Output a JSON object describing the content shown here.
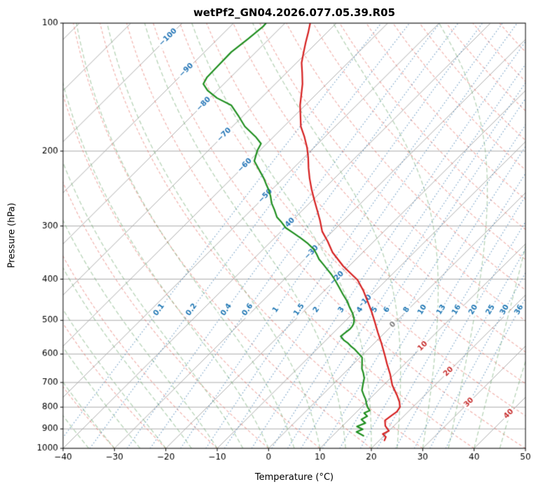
{
  "figure": {
    "title": "wetPf2_GN04.2026.077.05.39.R05",
    "xlabel": "Temperature (°C)",
    "ylabel": "Pressure (hPa)"
  },
  "chart_data": {
    "type": "line",
    "variant": "skew-t-log-p-sounding",
    "title": "wetPf2_GN04.2026.077.05.39.R05",
    "xlabel": "Temperature (°C)",
    "ylabel": "Pressure (hPa)",
    "xlim": [
      -40,
      50
    ],
    "x_ticks": [
      -40,
      -30,
      -20,
      -10,
      0,
      10,
      20,
      30,
      40,
      50
    ],
    "pressure_range": [
      100,
      1000
    ],
    "pressure_ticks": [
      100,
      200,
      300,
      400,
      500,
      600,
      700,
      800,
      900,
      1000
    ],
    "skew_c_per_decade": 83.2,
    "grid": true,
    "colors": {
      "grid": "#ababab",
      "dry_adiabat": "rgba(229,106,94,0.55)",
      "moist_adiabat": "rgba(95,160,95,0.45)",
      "mixing_line": "rgba(70,130,180,0.75)",
      "mixing_label": "#1f77b4",
      "isotherm_label_cold": "#2878b8",
      "isotherm_label_zero": "#7f7f7f",
      "isotherm_label_warm": "#c83232",
      "temperature_line": "#d62020",
      "dewpoint_line": "#1f8f1f",
      "spine": "#000000"
    },
    "isotherms": {
      "min": -120,
      "max": 50,
      "step": 10
    },
    "isotherm_labels": [
      {
        "t": -100,
        "p": 108,
        "color": "#2878b8"
      },
      {
        "t": -90,
        "p": 129,
        "color": "#2878b8"
      },
      {
        "t": -80,
        "p": 155,
        "color": "#2878b8"
      },
      {
        "t": -70,
        "p": 183,
        "color": "#2878b8"
      },
      {
        "t": -60,
        "p": 216,
        "color": "#2878b8"
      },
      {
        "t": -50,
        "p": 255,
        "color": "#2878b8"
      },
      {
        "t": -40,
        "p": 298,
        "color": "#2878b8"
      },
      {
        "t": -30,
        "p": 346,
        "color": "#2878b8"
      },
      {
        "t": -20,
        "p": 398,
        "color": "#2878b8"
      },
      {
        "t": -10,
        "p": 452,
        "color": "#2878b8"
      },
      {
        "t": 0,
        "p": 512,
        "color": "#7f7f7f"
      },
      {
        "t": 10,
        "p": 575,
        "color": "#c83232"
      },
      {
        "t": 20,
        "p": 660,
        "color": "#c83232"
      },
      {
        "t": 30,
        "p": 780,
        "color": "#c83232"
      },
      {
        "t": 40,
        "p": 830,
        "color": "#c83232"
      }
    ],
    "dry_adiabats": {
      "theta_min": -40,
      "theta_max": 190,
      "step": 10
    },
    "moist_adiabats": {
      "t_min": -40,
      "t_max": 45,
      "step": 5
    },
    "mixing_ratio_lines": {
      "values_g_kg": [
        0.1,
        0.2,
        0.4,
        0.6,
        1,
        1.5,
        2,
        3,
        4,
        5,
        6,
        8,
        10,
        13,
        16,
        20,
        25,
        30,
        36
      ],
      "label_pressure_hpa": 472
    },
    "series": [
      {
        "name": "temperature",
        "color": "#d62020",
        "points_p_t": [
          [
            958,
            21.0
          ],
          [
            940,
            20.6
          ],
          [
            925,
            19.4
          ],
          [
            910,
            20.0
          ],
          [
            885,
            18.3
          ],
          [
            860,
            17.2
          ],
          [
            838,
            17.5
          ],
          [
            820,
            17.8
          ],
          [
            800,
            17.5
          ],
          [
            778,
            16.4
          ],
          [
            750,
            14.6
          ],
          [
            710,
            11.7
          ],
          [
            670,
            9.2
          ],
          [
            634,
            6.6
          ],
          [
            600,
            4.1
          ],
          [
            566,
            1.4
          ],
          [
            534,
            -1.4
          ],
          [
            505,
            -4.0
          ],
          [
            477,
            -6.7
          ],
          [
            451,
            -9.5
          ],
          [
            425,
            -12.5
          ],
          [
            402,
            -15.6
          ],
          [
            373,
            -21.1
          ],
          [
            346,
            -25.9
          ],
          [
            326,
            -29.0
          ],
          [
            309,
            -32.0
          ],
          [
            291,
            -34.6
          ],
          [
            275,
            -37.2
          ],
          [
            260,
            -39.8
          ],
          [
            246,
            -42.3
          ],
          [
            232,
            -44.8
          ],
          [
            219,
            -47.1
          ],
          [
            207,
            -49.2
          ],
          [
            196,
            -51.4
          ],
          [
            185,
            -54.0
          ],
          [
            175,
            -56.7
          ],
          [
            165,
            -58.9
          ],
          [
            156,
            -61.0
          ],
          [
            147,
            -62.9
          ],
          [
            139,
            -64.7
          ],
          [
            131,
            -66.9
          ],
          [
            124,
            -69.0
          ],
          [
            117,
            -70.7
          ],
          [
            111,
            -72.2
          ],
          [
            105,
            -73.7
          ],
          [
            100,
            -75.1
          ]
        ]
      },
      {
        "name": "dewpoint",
        "color": "#1f8f1f",
        "points_p_t": [
          [
            934,
            16.0
          ],
          [
            915,
            13.9
          ],
          [
            902,
            14.6
          ],
          [
            888,
            12.9
          ],
          [
            872,
            13.9
          ],
          [
            855,
            12.4
          ],
          [
            840,
            12.9
          ],
          [
            826,
            11.7
          ],
          [
            815,
            12.3
          ],
          [
            800,
            11.2
          ],
          [
            783,
            10.2
          ],
          [
            767,
            9.3
          ],
          [
            748,
            8.0
          ],
          [
            730,
            6.8
          ],
          [
            706,
            5.8
          ],
          [
            684,
            4.9
          ],
          [
            665,
            3.7
          ],
          [
            650,
            2.6
          ],
          [
            630,
            1.5
          ],
          [
            611,
            0.4
          ],
          [
            597,
            -1.2
          ],
          [
            585,
            -2.6
          ],
          [
            575,
            -4.0
          ],
          [
            566,
            -5.1
          ],
          [
            556,
            -6.6
          ],
          [
            545,
            -7.9
          ],
          [
            534,
            -7.7
          ],
          [
            524,
            -7.5
          ],
          [
            516,
            -7.6
          ],
          [
            510,
            -7.8
          ],
          [
            503,
            -8.2
          ],
          [
            496,
            -8.7
          ],
          [
            482,
            -10.0
          ],
          [
            468,
            -11.6
          ],
          [
            450,
            -13.6
          ],
          [
            434,
            -15.7
          ],
          [
            418,
            -17.8
          ],
          [
            402,
            -20.0
          ],
          [
            390,
            -21.8
          ],
          [
            380,
            -23.5
          ],
          [
            369,
            -25.4
          ],
          [
            359,
            -27.2
          ],
          [
            349,
            -28.7
          ],
          [
            340,
            -30.2
          ],
          [
            330,
            -32.4
          ],
          [
            321,
            -34.7
          ],
          [
            312,
            -37.2
          ],
          [
            303,
            -39.8
          ],
          [
            294,
            -41.7
          ],
          [
            286,
            -43.6
          ],
          [
            275,
            -45.5
          ],
          [
            265,
            -47.4
          ],
          [
            255,
            -49.0
          ],
          [
            246,
            -50.7
          ],
          [
            239,
            -52.2
          ],
          [
            232,
            -53.7
          ],
          [
            223,
            -55.9
          ],
          [
            211,
            -59.0
          ],
          [
            199,
            -60.5
          ],
          [
            192,
            -61.1
          ],
          [
            185,
            -63.5
          ],
          [
            175,
            -67.6
          ],
          [
            165,
            -71.0
          ],
          [
            156,
            -74.4
          ],
          [
            150,
            -78.6
          ],
          [
            144,
            -81.9
          ],
          [
            139,
            -84.0
          ],
          [
            134,
            -84.6
          ],
          [
            126,
            -84.7
          ],
          [
            117,
            -84.8
          ],
          [
            109,
            -84.1
          ],
          [
            102,
            -83.6
          ],
          [
            100,
            -83.7
          ]
        ]
      }
    ]
  }
}
